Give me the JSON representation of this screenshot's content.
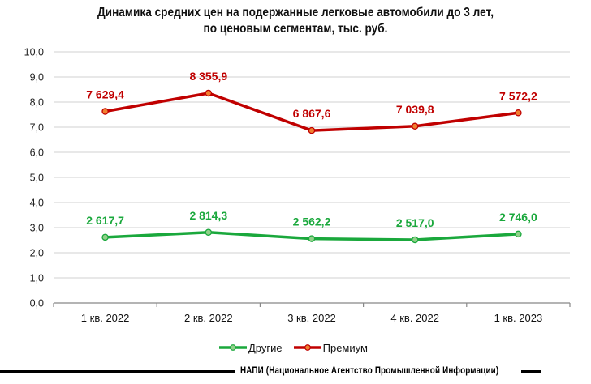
{
  "title_line1": "Динамика средних цен на подержанные легковые автомобили до 3 лет,",
  "title_line2": "по ценовым сегментам,  тыс. руб.",
  "footer": "НАПИ (Национальное Агентство Промышленной Информации)",
  "legend": [
    {
      "label": "Другие",
      "color": "#1aa83c",
      "marker_fill": "#92d08a"
    },
    {
      "label": "Премиум",
      "color": "#c00000",
      "marker_fill": "#f08030"
    }
  ],
  "chart_data": {
    "type": "line",
    "title": "Динамика средних цен на подержанные легковые автомобили до 3 лет, по ценовым сегментам, тыс. руб.",
    "xlabel": "",
    "ylabel": "",
    "categories": [
      "1 кв. 2022",
      "2 кв. 2022",
      "3 кв. 2022",
      "4 кв. 2022",
      "1 кв. 2023"
    ],
    "ylim": [
      0,
      10
    ],
    "yticks": [
      "0,0",
      "1,0",
      "2,0",
      "3,0",
      "4,0",
      "5,0",
      "6,0",
      "7,0",
      "8,0",
      "9,0",
      "10,0"
    ],
    "grid": true,
    "legend_position": "bottom",
    "series": [
      {
        "name": "Другие",
        "color": "#1aa83c",
        "values": [
          2617.7,
          2814.3,
          2562.2,
          2517.0,
          2746.0
        ],
        "labels": [
          "2 617,7",
          "2 814,3",
          "2 562,2",
          "2 517,0",
          "2 746,0"
        ]
      },
      {
        "name": "Премиум",
        "color": "#c00000",
        "values": [
          7629.4,
          8355.9,
          6867.6,
          7039.8,
          7572.2
        ],
        "labels": [
          "7 629,4",
          "8 355,9",
          "6 867,6",
          "7 039,8",
          "7 572,2"
        ]
      }
    ],
    "note": "Data labels in thousand rubles; plotted against y-axis scale in thousands (values/1000)."
  }
}
